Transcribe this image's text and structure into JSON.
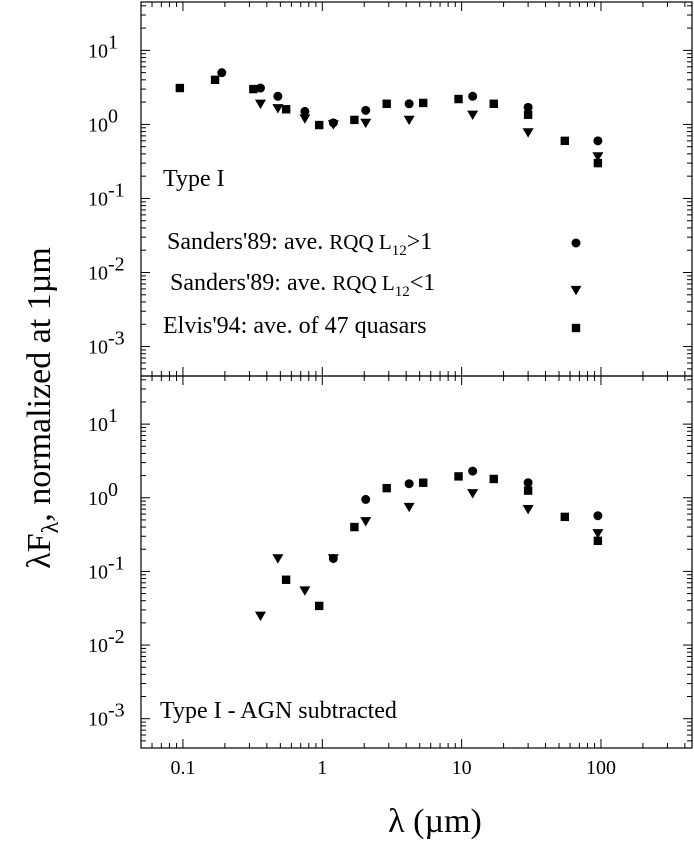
{
  "chart_data": {
    "type": "scatter",
    "xlabel": "λ (µm)",
    "ylabel": "λF_λ, normalized at 1µm",
    "xscale": "log",
    "yscale": "log",
    "xlim": [
      0.05,
      450
    ],
    "x_tick_labels": [
      "0.1",
      "1",
      "10",
      "100"
    ],
    "x_tick_values": [
      0.1,
      1,
      10,
      100
    ],
    "y_tick_values": [
      0.001,
      0.01,
      0.1,
      1,
      10
    ],
    "y_tick_labels": [
      {
        "base": "10",
        "exp": "-3"
      },
      {
        "base": "10",
        "exp": "-2"
      },
      {
        "base": "10",
        "exp": "-1"
      },
      {
        "base": "10",
        "exp": "0"
      },
      {
        "base": "10",
        "exp": "1"
      }
    ],
    "legend": [
      {
        "prefix": "Sanders'89: ave. ",
        "mid": "RQQ L",
        "sub": "12",
        "suffix": ">1",
        "marker": "circle"
      },
      {
        "prefix": "Sanders'89: ave. ",
        "mid": "RQQ L",
        "sub": "12",
        "suffix": "<1",
        "marker": "triangle-down"
      },
      {
        "prefix": "Elvis'94: ave. of 47 quasars",
        "mid": "",
        "sub": "",
        "suffix": "",
        "marker": "square"
      }
    ],
    "panels": [
      {
        "label": "Type I",
        "ylim": [
          0.0004,
          45
        ],
        "series": [
          {
            "marker": "circle",
            "x": [
              0.19,
              0.36,
              0.48,
              0.75,
              1.2,
              2.05,
              4.2,
              12,
              30,
              95
            ],
            "y": [
              5.0,
              3.1,
              2.4,
              1.5,
              1.05,
              1.55,
              1.9,
              2.4,
              1.7,
              0.6
            ]
          },
          {
            "marker": "triangle-down",
            "x": [
              0.36,
              0.48,
              0.75,
              1.2,
              2.05,
              4.2,
              12,
              30,
              95
            ],
            "y": [
              1.9,
              1.65,
              1.2,
              1.0,
              1.05,
              1.15,
              1.35,
              0.78,
              0.37
            ]
          },
          {
            "marker": "square",
            "x": [
              0.095,
              0.17,
              0.32,
              0.55,
              0.95,
              1.7,
              2.9,
              5.3,
              9.5,
              17,
              30,
              55,
              95
            ],
            "y": [
              3.1,
              4.0,
              3.0,
              1.6,
              0.98,
              1.15,
              1.9,
              1.95,
              2.2,
              1.9,
              1.35,
              0.6,
              0.3
            ]
          }
        ]
      },
      {
        "label": "Type I - AGN subtracted",
        "ylim": [
          0.0004,
          45
        ],
        "series": [
          {
            "marker": "circle",
            "x": [
              1.2,
              2.05,
              4.2,
              12,
              30,
              95
            ],
            "y": [
              0.15,
              0.95,
              1.55,
              2.3,
              1.6,
              0.57
            ]
          },
          {
            "marker": "triangle-down",
            "x": [
              0.36,
              0.48,
              0.75,
              1.2,
              2.05,
              4.2,
              12,
              30,
              95
            ],
            "y": [
              0.025,
              0.15,
              0.055,
              0.15,
              0.48,
              0.75,
              1.15,
              0.7,
              0.33
            ]
          },
          {
            "marker": "square",
            "x": [
              0.55,
              0.95,
              1.7,
              2.9,
              5.3,
              9.5,
              17,
              30,
              55,
              95
            ],
            "y": [
              0.077,
              0.034,
              0.4,
              1.35,
              1.6,
              1.95,
              1.8,
              1.25,
              0.55,
              0.26
            ]
          }
        ]
      }
    ]
  }
}
